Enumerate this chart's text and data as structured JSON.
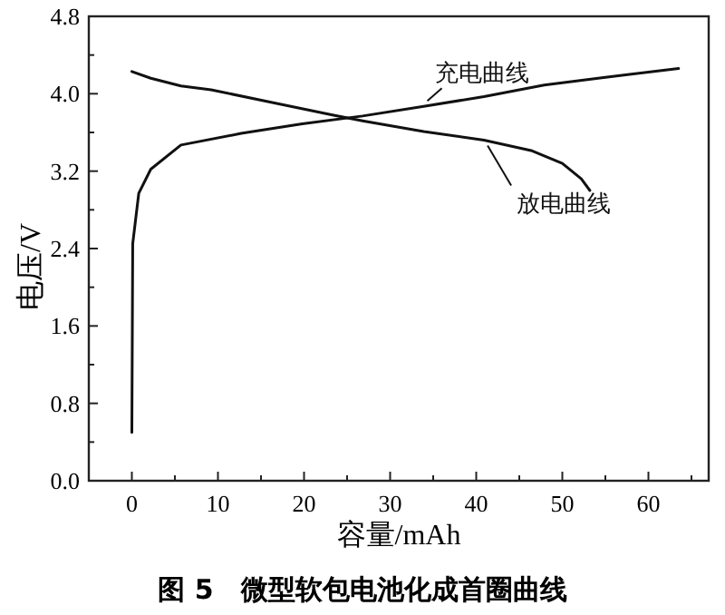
{
  "chart_data": {
    "type": "line",
    "xlabel": "容量/mAh",
    "ylabel": "电压/V",
    "annotations": [
      "图 5　微型软包电池化成首圈曲线"
    ],
    "xlim": [
      -5,
      67
    ],
    "ylim": [
      0,
      4.8
    ],
    "xticks": [
      0,
      {
        "value": 5,
        "label": null
      },
      10,
      {
        "value": 15,
        "label": null
      },
      20,
      {
        "value": 25,
        "label": null
      },
      30,
      {
        "value": 35,
        "label": null
      },
      40,
      {
        "value": 45,
        "label": null
      },
      50,
      {
        "value": 55,
        "label": null
      },
      60,
      {
        "value": 65,
        "label": null
      }
    ],
    "yticks": [
      {
        "value": 0,
        "label": "0.0"
      },
      {
        "value": 0.4,
        "label": null
      },
      0.8,
      {
        "value": 1.2,
        "label": null
      },
      1.6,
      {
        "value": 2.0,
        "label": null
      },
      2.4,
      {
        "value": 2.8,
        "label": null
      },
      3.2,
      {
        "value": 3.6,
        "label": null
      },
      {
        "value": 4.0,
        "label": "4.0"
      },
      {
        "value": 4.4,
        "label": null
      },
      4.8
    ],
    "grid": false,
    "marker": "none",
    "line_style": "solid",
    "series": [
      {
        "name": "充电曲线",
        "color": "#111111",
        "x": [
          0,
          0.1,
          0.8,
          2.2,
          5.7,
          12.7,
          19.8,
          26.8,
          33.9,
          40.9,
          47.9,
          55,
          57.8,
          63.5
        ],
        "values": [
          0.5,
          2.45,
          2.97,
          3.22,
          3.47,
          3.59,
          3.69,
          3.77,
          3.87,
          3.97,
          4.09,
          4.17,
          4.2,
          4.26
        ]
      },
      {
        "name": "放电曲线",
        "color": "#111111",
        "x": [
          0,
          2.2,
          5.7,
          9.2,
          16.3,
          23.3,
          26.8,
          33.9,
          40.9,
          46.5,
          50,
          52.2,
          53.2
        ],
        "values": [
          4.23,
          4.16,
          4.08,
          4.04,
          3.91,
          3.78,
          3.72,
          3.61,
          3.52,
          3.41,
          3.28,
          3.12,
          3.0
        ]
      }
    ]
  }
}
